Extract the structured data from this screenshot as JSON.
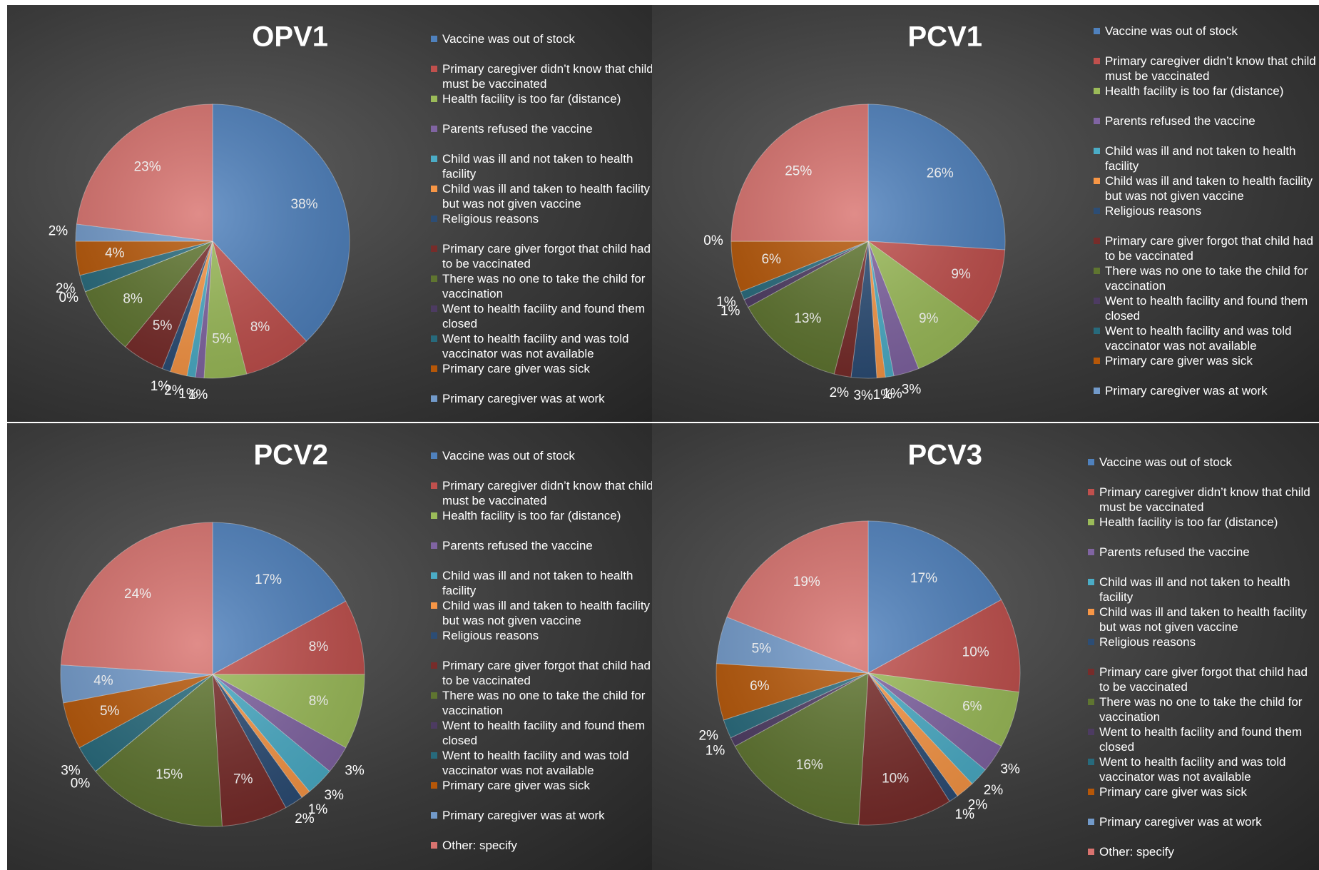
{
  "chart_data": [
    {
      "type": "pie",
      "title": "OPV1",
      "categories": [
        "Vaccine was out of stock",
        "Primary caregiver didn’t know that child must be vaccinated",
        "Health facility is too far (distance)",
        "Parents refused the vaccine",
        "Child was ill and not taken to health facility",
        "Child was ill and taken to health facility but was not given vaccine",
        "Religious reasons",
        "Primary care giver forgot that child had to be vaccinated",
        "There was no one to take the child for vaccination",
        "Went to health facility and found them closed",
        "Went to health facility and was told vaccinator was not available",
        "Primary care giver was sick",
        "Primary caregiver was at work",
        null
      ],
      "values": [
        38,
        8,
        5,
        1,
        1,
        2,
        1,
        5,
        8,
        0,
        2,
        4,
        2,
        23
      ],
      "value_labels": [
        "38%",
        "8%",
        "5%",
        "1%",
        "1%",
        "2%",
        "1%",
        "5%",
        "8%",
        "0%",
        "2%",
        "4%",
        "2%",
        "23%"
      ],
      "colors": [
        "#4f81bd",
        "#c0504d",
        "#9bbb59",
        "#8064a2",
        "#4bacc6",
        "#f79646",
        "#2c4d75",
        "#772c2a",
        "#5f7530",
        "#4d3b62",
        "#276a7c",
        "#b65708",
        "#729aca",
        "#d9736f"
      ]
    },
    {
      "type": "pie",
      "title": "PCV1",
      "categories": [
        "Vaccine was out of stock",
        "Primary caregiver didn’t know that child must be vaccinated",
        "Health facility is too far (distance)",
        "Parents refused the vaccine",
        "Child was ill and not taken to health facility",
        "Child was ill and taken to health facility but was not given vaccine",
        "Religious reasons",
        "Primary care giver forgot that child had to be vaccinated",
        "There was no one to take the child for vaccination",
        "Went to health facility and found them closed",
        "Went to health facility and was told vaccinator was not available",
        "Primary care giver was sick",
        "Primary caregiver was at work",
        null
      ],
      "values": [
        26,
        9,
        9,
        3,
        1,
        1,
        3,
        2,
        13,
        1,
        1,
        6,
        0,
        25
      ],
      "value_labels": [
        "26%",
        "9%",
        "9%",
        "3%",
        "1%",
        "1%",
        "3%",
        "2%",
        "13%",
        "1%",
        "1%",
        "6%",
        "0%",
        "25%"
      ],
      "colors": [
        "#4f81bd",
        "#c0504d",
        "#9bbb59",
        "#8064a2",
        "#4bacc6",
        "#f79646",
        "#2c4d75",
        "#772c2a",
        "#5f7530",
        "#4d3b62",
        "#276a7c",
        "#b65708",
        "#729aca",
        "#d9736f"
      ]
    },
    {
      "type": "pie",
      "title": "PCV2",
      "categories": [
        "Vaccine was out of stock",
        "Primary caregiver didn’t know that child must be vaccinated",
        "Health facility is too far (distance)",
        "Parents refused the vaccine",
        "Child was ill and not taken to health facility",
        "Child was ill and taken to health facility but was not given vaccine",
        "Religious reasons",
        "Primary care giver forgot that child had to be vaccinated",
        "There was no one to take the child for vaccination",
        "Went to health facility and found them closed",
        "Went to health facility and was told vaccinator was not available",
        "Primary care giver was sick",
        "Primary caregiver was at work",
        "Other: specify"
      ],
      "values": [
        17,
        8,
        8,
        3,
        3,
        1,
        2,
        7,
        15,
        0,
        3,
        5,
        4,
        24
      ],
      "value_labels": [
        "17%",
        "8%",
        "8%",
        "3%",
        "3%",
        "1%",
        "2%",
        "7%",
        "15%",
        "0%",
        "3%",
        "5%",
        "4%",
        "24%"
      ],
      "colors": [
        "#4f81bd",
        "#c0504d",
        "#9bbb59",
        "#8064a2",
        "#4bacc6",
        "#f79646",
        "#2c4d75",
        "#772c2a",
        "#5f7530",
        "#4d3b62",
        "#276a7c",
        "#b65708",
        "#729aca",
        "#d9736f"
      ]
    },
    {
      "type": "pie",
      "title": "PCV3",
      "categories": [
        "Vaccine was out of stock",
        "Primary caregiver didn’t know that child must be vaccinated",
        "Health facility is too far (distance)",
        "Parents refused the vaccine",
        "Child was ill and not taken to health facility",
        "Child was ill and taken to health facility but was not given vaccine",
        "Religious reasons",
        "Primary care giver forgot that child had to be vaccinated",
        "There was no one to take the child for vaccination",
        "Went to health facility and found them closed",
        "Went to health facility and was told vaccinator was not available",
        "Primary care giver was sick",
        "Primary caregiver was at work",
        "Other: specify"
      ],
      "values": [
        17,
        10,
        6,
        3,
        2,
        2,
        1,
        10,
        16,
        1,
        2,
        6,
        5,
        19
      ],
      "value_labels": [
        "17%",
        "10%",
        "6%",
        "3%",
        "2%",
        "2%",
        "1%",
        "10%",
        "16%",
        "1%",
        "2%",
        "6%",
        "5%",
        "19%"
      ],
      "colors": [
        "#4f81bd",
        "#c0504d",
        "#9bbb59",
        "#8064a2",
        "#4bacc6",
        "#f79646",
        "#2c4d75",
        "#772c2a",
        "#5f7530",
        "#4d3b62",
        "#276a7c",
        "#b65708",
        "#729aca",
        "#d9736f"
      ]
    }
  ]
}
